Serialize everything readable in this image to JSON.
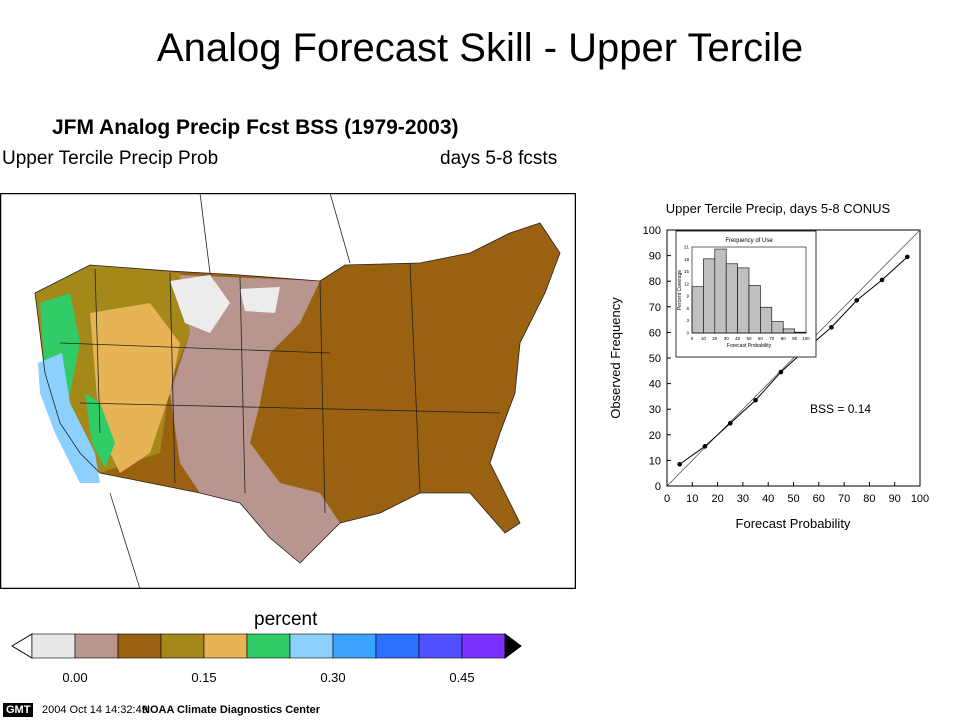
{
  "slide": {
    "title": "Analog Forecast Skill - Upper Tercile"
  },
  "map": {
    "title": "JFM Analog Precip Fcst BSS (1979-2003)",
    "subtitle_left": "Upper Tercile Precip Prob",
    "subtitle_right": "days 5-8 fcsts",
    "colorbar_label": "percent",
    "colorbar_ticks": [
      "0.00",
      "0.15",
      "0.30",
      "0.45"
    ],
    "colorbar_colors": [
      "#ffffff",
      "#e8e8e8",
      "#b8968f",
      "#9a6110",
      "#a4881a",
      "#e6b455",
      "#30cc68",
      "#8cd0ff",
      "#3ca4ff",
      "#2c70ff",
      "#5050ff",
      "#7c30ff",
      "#a020ff"
    ]
  },
  "footer": {
    "logo": "GMT",
    "timestamp": "2004 Oct 14 14:32:49",
    "org": "NOAA Climate Diagnostics Center"
  },
  "chart_data": {
    "type": "line",
    "title": "Upper Tercile Precip, days 5-8 CONUS",
    "xlabel": "Forecast Probability",
    "ylabel": "Observed Frequency",
    "xlim": [
      0,
      100
    ],
    "ylim": [
      0,
      100
    ],
    "xticks": [
      "0",
      "10",
      "20",
      "30",
      "40",
      "50",
      "60",
      "70",
      "80",
      "90",
      "100"
    ],
    "yticks": [
      "0",
      "10",
      "20",
      "30",
      "40",
      "50",
      "60",
      "70",
      "80",
      "90",
      "100"
    ],
    "x": [
      5,
      15,
      25,
      35,
      45,
      55,
      65,
      75,
      85,
      95
    ],
    "y": [
      8.5,
      15.5,
      24.5,
      33.5,
      44.5,
      53.5,
      62,
      72.5,
      80.5,
      89.5
    ],
    "diagonal": true,
    "annotation": "BSS = 0.14",
    "inset": {
      "type": "bar",
      "title": "Frequency of Use",
      "xlabel": "Forecast Probability",
      "ylabel": "Percent Coverage",
      "categories": [
        5,
        15,
        25,
        35,
        45,
        55,
        65,
        75,
        85,
        95
      ],
      "values": [
        11.3,
        18.1,
        20.5,
        16.9,
        15.9,
        11.6,
        6.3,
        2.8,
        1.0,
        0.2
      ],
      "xticks": [
        "0",
        "10",
        "20",
        "30",
        "40",
        "50",
        "60",
        "70",
        "80",
        "90",
        "100"
      ],
      "yticks": [
        "0",
        "3",
        "6",
        "9",
        "12",
        "15",
        "18",
        "21"
      ],
      "ylim": [
        0,
        21
      ]
    }
  }
}
